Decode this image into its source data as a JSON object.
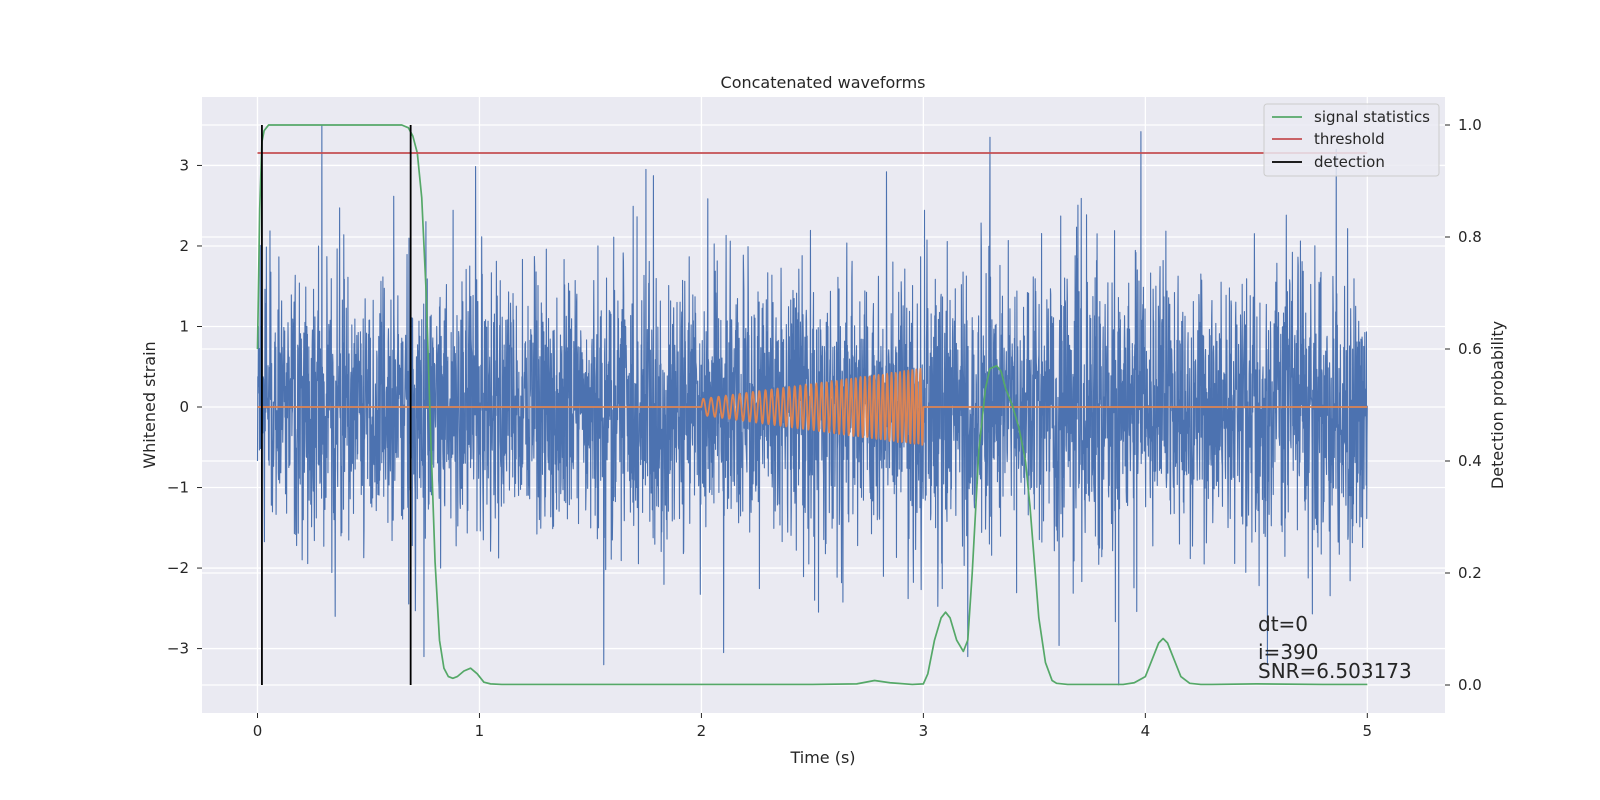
{
  "chart_data": {
    "type": "line",
    "title": "Concatenated waveforms",
    "xlabel": "Time (s)",
    "ylabel": "Whitened strain",
    "ylabel_right": "Detection probability",
    "xlim": [
      -0.25,
      5.35
    ],
    "ylim": [
      -3.8,
      3.85
    ],
    "ylim_right": [
      -0.05,
      1.05
    ],
    "x_ticks": [
      0,
      1,
      2,
      3,
      4,
      5
    ],
    "y_ticks": [
      -3,
      -2,
      -1,
      0,
      1,
      2,
      3
    ],
    "y_ticks_right": [
      0.0,
      0.2,
      0.4,
      0.6,
      0.8,
      1.0
    ],
    "x_tick_labels": [
      "0",
      "1",
      "2",
      "3",
      "4",
      "5"
    ],
    "y_tick_labels": [
      "−3",
      "−2",
      "−1",
      "0",
      "1",
      "2",
      "3"
    ],
    "y_tick_labels_right": [
      "0.0",
      "0.2",
      "0.4",
      "0.6",
      "0.8",
      "1.0"
    ],
    "grid": true,
    "background": "#eaeaf2",
    "legend_position": "top-right",
    "legend": [
      {
        "label": "signal statistics",
        "color": "#55a868"
      },
      {
        "label": "threshold",
        "color": "#c44e52"
      },
      {
        "label": "detection",
        "color": "#000000"
      }
    ],
    "series": [
      {
        "name": "",
        "axis": "left",
        "color": "#4c72b0",
        "kind": "noise",
        "x_range": [
          0,
          5
        ],
        "sigma": 0.85,
        "seed": 390,
        "points": 4000,
        "spikes": [
          {
            "x": 0.29,
            "y": 3.5
          },
          {
            "x": 1.75,
            "y": 2.95
          },
          {
            "x": 3.3,
            "y": 3.35
          },
          {
            "x": 3.98,
            "y": 3.42
          },
          {
            "x": 4.86,
            "y": 3.2
          },
          {
            "x": 0.35,
            "y": -2.6
          },
          {
            "x": 1.56,
            "y": -3.2
          },
          {
            "x": 2.1,
            "y": -3.05
          },
          {
            "x": 3.2,
            "y": -3.1
          },
          {
            "x": 3.88,
            "y": -3.45
          },
          {
            "x": 4.55,
            "y": -3.2
          },
          {
            "x": 0.75,
            "y": -3.1
          }
        ]
      },
      {
        "name": "",
        "axis": "left",
        "color": "#dd8452",
        "kind": "chirp",
        "x_range": [
          0,
          5
        ],
        "chirp_start": 2.0,
        "chirp_end": 3.0,
        "amp_start": 0.1,
        "amp_end": 0.48,
        "freq_start": 28,
        "freq_end": 56
      },
      {
        "name": "signal statistics",
        "axis": "right",
        "color": "#55a868",
        "x": [
          0.0,
          0.01,
          0.02,
          0.03,
          0.05,
          0.08,
          0.12,
          0.2,
          0.4,
          0.6,
          0.65,
          0.68,
          0.7,
          0.72,
          0.74,
          0.76,
          0.78,
          0.8,
          0.82,
          0.84,
          0.86,
          0.88,
          0.9,
          0.93,
          0.96,
          0.99,
          1.02,
          1.05,
          1.1,
          1.5,
          2.0,
          2.5,
          2.7,
          2.78,
          2.85,
          2.95,
          3.0,
          3.02,
          3.05,
          3.08,
          3.1,
          3.12,
          3.15,
          3.18,
          3.2,
          3.22,
          3.25,
          3.28,
          3.3,
          3.33,
          3.35,
          3.37,
          3.4,
          3.43,
          3.46,
          3.48,
          3.5,
          3.52,
          3.55,
          3.58,
          3.6,
          3.65,
          3.7,
          3.9,
          3.95,
          4.0,
          4.03,
          4.06,
          4.08,
          4.1,
          4.13,
          4.16,
          4.2,
          4.25,
          4.3,
          4.5,
          4.8,
          5.0
        ],
        "y": [
          0.6,
          0.85,
          0.97,
          0.99,
          1.0,
          1.0,
          1.0,
          1.0,
          1.0,
          1.0,
          1.0,
          0.995,
          0.98,
          0.95,
          0.87,
          0.7,
          0.45,
          0.22,
          0.08,
          0.03,
          0.015,
          0.012,
          0.015,
          0.025,
          0.03,
          0.02,
          0.005,
          0.002,
          0.001,
          0.001,
          0.001,
          0.001,
          0.002,
          0.008,
          0.004,
          0.001,
          0.002,
          0.02,
          0.08,
          0.12,
          0.13,
          0.12,
          0.08,
          0.06,
          0.08,
          0.2,
          0.42,
          0.53,
          0.565,
          0.57,
          0.56,
          0.53,
          0.5,
          0.46,
          0.4,
          0.32,
          0.22,
          0.12,
          0.04,
          0.008,
          0.003,
          0.001,
          0.001,
          0.001,
          0.004,
          0.015,
          0.045,
          0.075,
          0.083,
          0.075,
          0.045,
          0.015,
          0.003,
          0.001,
          0.001,
          0.002,
          0.001,
          0.001
        ]
      },
      {
        "name": "threshold",
        "axis": "right",
        "color": "#c44e52",
        "x": [
          0,
          5
        ],
        "y": [
          0.95,
          0.95
        ]
      }
    ],
    "detections": [
      0.02,
      0.69
    ],
    "detection_range": [
      0.0,
      1.0
    ],
    "annotations": [
      "dt=0",
      "i=390",
      "SNR=6.503173"
    ]
  }
}
